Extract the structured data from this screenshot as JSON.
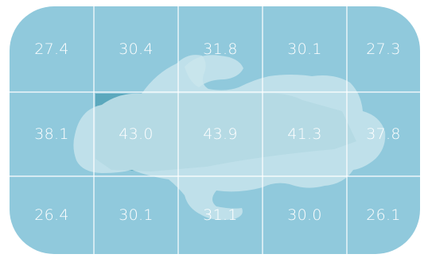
{
  "chart_data": {
    "type": "heatmap",
    "rows": 3,
    "columns": 5,
    "values": [
      [
        "27.4",
        "30.4",
        "31.8",
        "30.1",
        "27.3"
      ],
      [
        "38.1",
        "43.0",
        "43.9",
        "41.3",
        "37.8"
      ],
      [
        "26.4",
        "30.1",
        "31.1",
        "30.0",
        "26.1"
      ]
    ],
    "grid": true,
    "legend": "none"
  },
  "colors": {
    "background": "#90c9dc",
    "grid_lines": "#ffffff",
    "figure_fill": "#c9e5ed",
    "figure_shadow": "#5ba8bd",
    "text": "#ffffff"
  },
  "icons": {
    "figure": "lying-body-silhouette-icon"
  }
}
